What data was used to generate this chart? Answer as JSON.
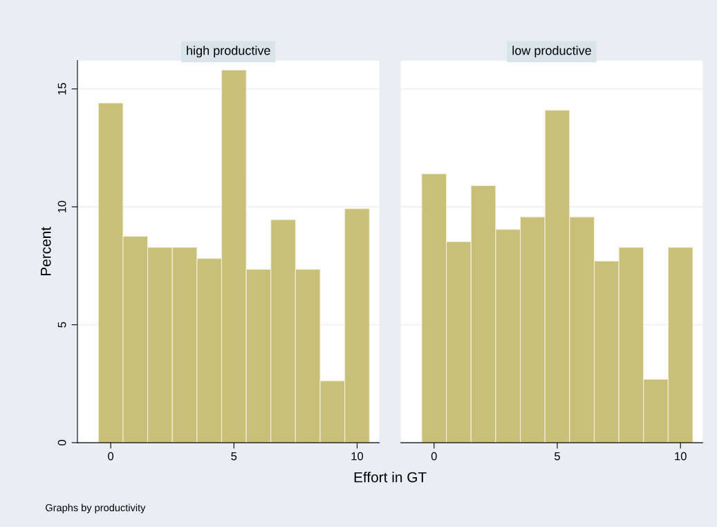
{
  "chart_data": [
    {
      "type": "histogram",
      "title": "high productive",
      "ylabel": "Percent",
      "xlabel": "Effort in GT",
      "annotations": [
        "Graphs by productivity"
      ],
      "bins": [
        -0.5,
        0.5,
        1.5,
        2.5,
        3.5,
        4.5,
        5.5,
        6.5,
        7.5,
        8.5,
        9.5,
        10.5
      ],
      "values": [
        14.4,
        8.75,
        8.28,
        8.28,
        7.81,
        15.8,
        7.35,
        9.45,
        7.35,
        2.62,
        9.92
      ],
      "color": "#c8bf79",
      "xlim": [
        -1.35,
        10.9
      ],
      "xticks": [
        0,
        5,
        10
      ],
      "ylim": [
        0,
        16.2
      ],
      "yticks": [
        0,
        5,
        10,
        15
      ],
      "grid": "y"
    },
    {
      "type": "histogram",
      "title": "low productive",
      "bins": [
        -0.5,
        0.5,
        1.5,
        2.5,
        3.5,
        4.5,
        5.5,
        6.5,
        7.5,
        8.5,
        9.5,
        10.5
      ],
      "values": [
        11.4,
        8.52,
        10.9,
        9.04,
        9.57,
        14.1,
        9.57,
        7.7,
        8.28,
        2.69,
        8.28
      ],
      "color": "#c8bf79",
      "xlim": [
        -1.35,
        10.9
      ],
      "xticks": [
        0,
        5,
        10
      ],
      "ylim": [
        0,
        16.2
      ],
      "yticks": [
        0,
        5,
        10,
        15
      ],
      "grid": "y",
      "tick_labels": "x"
    }
  ]
}
